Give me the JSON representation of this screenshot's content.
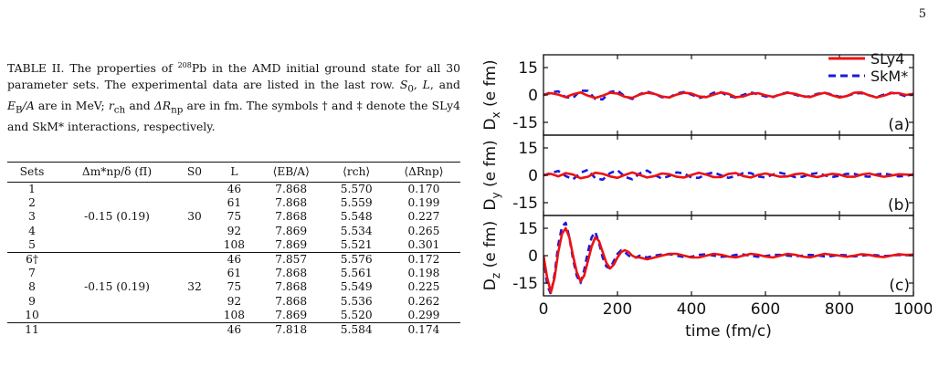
{
  "page_number": "5",
  "caption": {
    "label": "TABLE II.",
    "part1": " The properties of ",
    "isotope_mass": "208",
    "isotope_symbol": "Pb",
    "part2": " in the AMD initial ground state for all 30 parameter sets. The experimental data are listed in the last row. ",
    "s0": "S",
    "s0_sub": "0",
    "part3": ", ",
    "L": "L",
    "part4": ", and ",
    "EB": "E",
    "EB_sub": "B",
    "EB_tail": "/A",
    "part5": " are in MeV; ",
    "rch": "r",
    "rch_sub": "ch",
    "part6": " and ",
    "drnp": "ΔR",
    "drnp_sub": "np",
    "part7": " are in fm. The symbols † and ‡ denote the SLy4 and SkM* interactions, respectively."
  },
  "table": {
    "headers": [
      "Sets",
      "Δm*np/δ (fI)",
      "S0",
      "L",
      "⟨EB/A⟩",
      "⟨rch⟩",
      "⟨ΔRnp⟩"
    ],
    "rows": [
      {
        "set": "1",
        "dm": "",
        "s0": "",
        "L": "46",
        "eb": "7.868",
        "rch": "5.570",
        "drnp": "0.170"
      },
      {
        "set": "2",
        "dm": "",
        "s0": "",
        "L": "61",
        "eb": "7.868",
        "rch": "5.559",
        "drnp": "0.199"
      },
      {
        "set": "3",
        "dm": "-0.15 (0.19)",
        "s0": "30",
        "L": "75",
        "eb": "7.868",
        "rch": "5.548",
        "drnp": "0.227"
      },
      {
        "set": "4",
        "dm": "",
        "s0": "",
        "L": "92",
        "eb": "7.869",
        "rch": "5.534",
        "drnp": "0.265"
      },
      {
        "set": "5",
        "dm": "",
        "s0": "",
        "L": "108",
        "eb": "7.869",
        "rch": "5.521",
        "drnp": "0.301"
      },
      {
        "set": "6†",
        "dm": "",
        "s0": "",
        "L": "46",
        "eb": "7.857",
        "rch": "5.576",
        "drnp": "0.172"
      },
      {
        "set": "7",
        "dm": "",
        "s0": "",
        "L": "61",
        "eb": "7.868",
        "rch": "5.561",
        "drnp": "0.198"
      },
      {
        "set": "8",
        "dm": "-0.15 (0.19)",
        "s0": "32",
        "L": "75",
        "eb": "7.868",
        "rch": "5.549",
        "drnp": "0.225"
      },
      {
        "set": "9",
        "dm": "",
        "s0": "",
        "L": "92",
        "eb": "7.868",
        "rch": "5.536",
        "drnp": "0.262"
      },
      {
        "set": "10",
        "dm": "",
        "s0": "",
        "L": "108",
        "eb": "7.869",
        "rch": "5.520",
        "drnp": "0.299"
      },
      {
        "set": "11",
        "dm": "",
        "s0": "",
        "L": "46",
        "eb": "7.818",
        "rch": "5.584",
        "drnp": "0.174"
      }
    ]
  },
  "chart_data": {
    "type": "line",
    "xlabel": "time (fm/c)",
    "xlim": [
      0,
      1000
    ],
    "xticks": [
      "0",
      "200",
      "400",
      "600",
      "800",
      "1000"
    ],
    "ylim": [
      -22,
      22
    ],
    "yticks": [
      "15",
      "0",
      "-15"
    ],
    "legend": [
      {
        "name": "SLy4",
        "color": "#ee1111",
        "style": "solid"
      },
      {
        "name": "SkM*",
        "color": "#1a1adb",
        "style": "dashed"
      }
    ],
    "legend_placement": "top-right",
    "panels": [
      {
        "id": "x",
        "ylabel": "D",
        "ylabel_sub": "x",
        "ylabel_unit": " (e fm)",
        "tag": "(a)",
        "series": [
          {
            "name": "SLy4",
            "x": [
              0,
              20,
              40,
              60,
              80,
              100,
              120,
              140,
              160,
              180,
              200,
              220,
              240,
              260,
              280,
              300,
              320,
              340,
              360,
              380,
              400,
              420,
              440,
              460,
              480,
              500,
              520,
              540,
              560,
              580,
              600,
              620,
              640,
              660,
              680,
              700,
              720,
              740,
              760,
              780,
              800,
              820,
              840,
              860,
              880,
              900,
              920,
              940,
              960,
              980,
              1000
            ],
            "y": [
              0,
              1.0,
              0.2,
              -1.2,
              0.4,
              1.4,
              -0.4,
              -1.6,
              -0.4,
              1.2,
              0.8,
              -1.0,
              -1.6,
              0.2,
              1.2,
              0.6,
              -0.8,
              -1.4,
              0.2,
              1.2,
              0.8,
              -0.8,
              -1.2,
              0.2,
              1.4,
              0.6,
              -1.2,
              -0.8,
              0.6,
              1.0,
              -0.2,
              -1.0,
              0.2,
              1.2,
              0.6,
              -0.6,
              -1.2,
              0.2,
              1.2,
              -0.2,
              -1.4,
              -0.6,
              1.2,
              1.4,
              -0.2,
              -1.4,
              -0.4,
              1.0,
              1.0,
              0.0,
              0.6
            ]
          },
          {
            "name": "SkM*",
            "x": [
              0,
              20,
              40,
              60,
              80,
              100,
              120,
              140,
              160,
              180,
              200,
              220,
              240,
              260,
              280,
              300,
              320,
              340,
              360,
              380,
              400,
              420,
              440,
              460,
              480,
              500,
              520,
              540,
              560,
              580,
              600,
              620,
              640,
              660,
              680,
              700,
              720,
              740,
              760,
              780,
              800,
              820,
              840,
              860,
              880,
              900,
              920,
              940,
              960,
              980,
              1000
            ],
            "y": [
              0,
              1.4,
              2.0,
              -1.2,
              -1.6,
              2.4,
              2.2,
              -2.2,
              -2.4,
              1.6,
              2.4,
              -0.8,
              -2.2,
              0.4,
              1.8,
              0.6,
              -1.2,
              -1.4,
              0.8,
              1.6,
              0.2,
              -1.6,
              -0.8,
              1.2,
              1.4,
              -0.6,
              -1.4,
              0.0,
              1.4,
              0.4,
              -0.8,
              -1.2,
              0.4,
              1.4,
              0.2,
              -1.0,
              -0.8,
              0.6,
              1.2,
              0.2,
              -1.0,
              -0.6,
              0.8,
              1.0,
              -0.2,
              -1.2,
              0.2,
              1.2,
              0.6,
              -0.8,
              0.4
            ]
          }
        ]
      },
      {
        "id": "y",
        "ylabel": "D",
        "ylabel_sub": "y",
        "ylabel_unit": " (e fm)",
        "tag": "(b)",
        "series": [
          {
            "name": "SLy4",
            "x": [
              0,
              20,
              40,
              60,
              80,
              100,
              120,
              140,
              160,
              180,
              200,
              220,
              240,
              260,
              280,
              300,
              320,
              340,
              360,
              380,
              400,
              420,
              440,
              460,
              480,
              500,
              520,
              540,
              560,
              580,
              600,
              620,
              640,
              660,
              680,
              700,
              720,
              740,
              760,
              780,
              800,
              820,
              840,
              860,
              880,
              900,
              920,
              940,
              960,
              980,
              1000
            ],
            "y": [
              0,
              0.8,
              -0.6,
              1.2,
              0.4,
              -1.6,
              -0.8,
              1.4,
              0.8,
              -0.6,
              -1.4,
              0.2,
              1.6,
              0.2,
              -1.2,
              -0.4,
              1.0,
              0.6,
              -0.8,
              -1.2,
              0.2,
              1.4,
              0.4,
              -1.0,
              -1.0,
              0.8,
              1.2,
              -0.4,
              -1.2,
              0.2,
              1.0,
              0.2,
              -0.8,
              -0.6,
              0.6,
              1.0,
              -0.2,
              -1.0,
              0.0,
              0.8,
              0.4,
              -0.8,
              -0.8,
              0.4,
              1.0,
              0.0,
              -0.8,
              -0.2,
              0.6,
              0.4,
              0.2
            ]
          },
          {
            "name": "SkM*",
            "x": [
              0,
              20,
              40,
              60,
              80,
              100,
              120,
              140,
              160,
              180,
              200,
              220,
              240,
              260,
              280,
              300,
              320,
              340,
              360,
              380,
              400,
              420,
              440,
              460,
              480,
              500,
              520,
              540,
              560,
              580,
              600,
              620,
              640,
              660,
              680,
              700,
              720,
              740,
              760,
              780,
              800,
              820,
              840,
              860,
              880,
              900,
              920,
              940,
              960,
              980,
              1000
            ],
            "y": [
              0,
              1.2,
              2.4,
              -0.4,
              -2.2,
              1.4,
              3.0,
              -1.6,
              -2.4,
              1.2,
              2.8,
              -0.8,
              -2.2,
              1.0,
              2.6,
              0.2,
              -1.8,
              -0.4,
              1.6,
              1.0,
              -1.2,
              -1.4,
              0.6,
              1.6,
              0.0,
              -1.4,
              -0.4,
              1.2,
              1.2,
              -0.6,
              -1.2,
              0.4,
              1.4,
              0.4,
              -1.0,
              -0.8,
              0.6,
              1.2,
              0.0,
              -1.0,
              -0.2,
              0.8,
              0.8,
              -0.4,
              -0.8,
              0.4,
              1.0,
              0.2,
              -0.6,
              -0.4,
              0.6
            ]
          }
        ]
      },
      {
        "id": "z",
        "ylabel": "D",
        "ylabel_sub": "z",
        "ylabel_unit": " (e fm)",
        "tag": "(c)",
        "series": [
          {
            "name": "SLy4",
            "x": [
              0,
              10,
              20,
              30,
              40,
              50,
              60,
              70,
              80,
              90,
              100,
              110,
              120,
              130,
              140,
              150,
              160,
              170,
              180,
              190,
              200,
              210,
              220,
              230,
              240,
              250,
              260,
              280,
              300,
              320,
              340,
              360,
              380,
              400,
              420,
              440,
              460,
              480,
              500,
              520,
              540,
              560,
              580,
              600,
              620,
              640,
              660,
              680,
              700,
              720,
              740,
              760,
              780,
              800,
              820,
              840,
              860,
              880,
              900,
              920,
              940,
              960,
              980,
              1000
            ],
            "y": [
              0,
              -12,
              -20,
              -12,
              2,
              12,
              15,
              10,
              0,
              -9,
              -14,
              -11,
              -3,
              5,
              10,
              8,
              2,
              -4,
              -7,
              -5,
              -1,
              2,
              3,
              2,
              0,
              -1,
              -1,
              -2,
              -1,
              0,
              1,
              1,
              0,
              -1,
              -1,
              0,
              1,
              0.5,
              -0.5,
              -1,
              0,
              1,
              0.5,
              -0.5,
              -1,
              0,
              1,
              0.5,
              -0.5,
              -1,
              0,
              1,
              0.5,
              0,
              -0.6,
              0,
              0.8,
              0.4,
              -0.4,
              -0.8,
              0,
              0.8,
              0.4,
              0.6
            ]
          },
          {
            "name": "SkM*",
            "x": [
              0,
              10,
              20,
              30,
              40,
              50,
              60,
              70,
              80,
              90,
              100,
              110,
              120,
              130,
              140,
              150,
              160,
              170,
              180,
              190,
              200,
              210,
              220,
              230,
              240,
              250,
              260,
              280,
              300,
              320,
              340,
              360,
              380,
              400,
              420,
              440,
              460,
              480,
              500,
              520,
              540,
              560,
              580,
              600,
              620,
              640,
              660,
              680,
              700,
              720,
              740,
              760,
              780,
              800,
              820,
              840,
              860,
              880,
              900,
              920,
              940,
              960,
              980,
              1000
            ],
            "y": [
              0,
              -16,
              -21,
              -10,
              6,
              16,
              18,
              10,
              -2,
              -11,
              -15,
              -8,
              2,
              10,
              13,
              7,
              -1,
              -6,
              -7,
              -3,
              1,
              3,
              2,
              0,
              -1,
              -1,
              0,
              -1,
              0,
              0.6,
              0.8,
              0,
              -0.8,
              -0.6,
              0.4,
              0.8,
              0,
              -0.6,
              -0.4,
              0.4,
              0.6,
              0,
              -0.6,
              -0.2,
              0.4,
              0.4,
              0,
              -0.4,
              0,
              0.4,
              0.2,
              -0.4,
              -0.2,
              0.4,
              0.2,
              -0.4,
              0,
              0.4,
              0.2,
              -0.2,
              0,
              0.4,
              0.2,
              0.4
            ]
          }
        ]
      }
    ]
  }
}
